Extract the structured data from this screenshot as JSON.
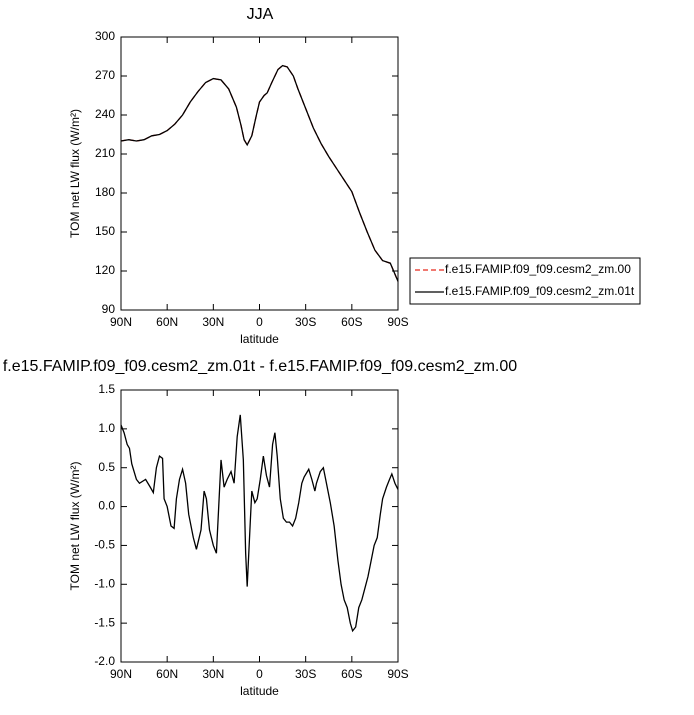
{
  "chart_data": [
    {
      "type": "line",
      "title": "JJA",
      "xlabel": "latitude",
      "ylabel": "TOM net LW flux (W/m²)",
      "xlim": [
        90,
        -90
      ],
      "ylim": [
        90,
        300
      ],
      "xticks": [
        {
          "value": 90,
          "label": "90N"
        },
        {
          "value": 60,
          "label": "60N"
        },
        {
          "value": 30,
          "label": "30N"
        },
        0,
        {
          "value": -30,
          "label": "30S"
        },
        {
          "value": -60,
          "label": "60S"
        },
        {
          "value": -90,
          "label": "90S"
        }
      ],
      "yticks": [
        90,
        120,
        150,
        180,
        210,
        240,
        270,
        300
      ],
      "legend": "right",
      "x": [
        90,
        85,
        80,
        75,
        70,
        65,
        60,
        55,
        50,
        45,
        40,
        35,
        30,
        25,
        20,
        15,
        12,
        10,
        8,
        5,
        2,
        0,
        -3,
        -5,
        -8,
        -12,
        -15,
        -18,
        -22,
        -25,
        -30,
        -35,
        -40,
        -45,
        -50,
        -55,
        -60,
        -65,
        -70,
        -75,
        -80,
        -85,
        -90
      ],
      "series": [
        {
          "name": "f.e15.FAMIP.f09_f09.cesm2_zm.00",
          "color": "#e8291c",
          "line_style": "dashed",
          "values": [
            220,
            221,
            220,
            221,
            224,
            225,
            228,
            233,
            240,
            250,
            258,
            265,
            268,
            267,
            260,
            246,
            232,
            221,
            217,
            224,
            240,
            250,
            255,
            257,
            265,
            275,
            278,
            277,
            270,
            260,
            245,
            230,
            218,
            208,
            199,
            190,
            181,
            165,
            150,
            136,
            128,
            126,
            112
          ]
        },
        {
          "name": "f.e15.FAMIP.f09_f09.cesm2_zm.01t",
          "color": "#000000",
          "line_style": "solid",
          "values": [
            220,
            221,
            220,
            221,
            224,
            225,
            228,
            233,
            240,
            250,
            258,
            265,
            268,
            267,
            260,
            246,
            232,
            221,
            217,
            224,
            240,
            250,
            255,
            257,
            265,
            275,
            278,
            277,
            270,
            260,
            245,
            230,
            218,
            208,
            199,
            190,
            181,
            165,
            150,
            136,
            128,
            126,
            112
          ]
        }
      ]
    },
    {
      "type": "line",
      "title": "f.e15.FAMIP.f09_f09.cesm2_zm.01t - f.e15.FAMIP.f09_f09.cesm2_zm.00",
      "xlabel": "latitude",
      "ylabel": "TOM net LW flux (W/m²)",
      "xlim": [
        90,
        -90
      ],
      "ylim": [
        -2,
        1.5
      ],
      "xticks": [
        {
          "value": 90,
          "label": "90N"
        },
        {
          "value": 60,
          "label": "60N"
        },
        {
          "value": 30,
          "label": "30N"
        },
        0,
        {
          "value": -30,
          "label": "30S"
        },
        {
          "value": -60,
          "label": "60S"
        },
        {
          "value": -90,
          "label": "90S"
        }
      ],
      "yticks": [
        1.5,
        {
          "value": 1,
          "label": "1.0"
        },
        0.5,
        {
          "value": 0,
          "label": "0.0"
        },
        -0.5,
        {
          "value": -1,
          "label": "-1.0"
        },
        -1.5,
        {
          "value": -2,
          "label": "-2.0"
        }
      ],
      "x": [
        90,
        88,
        86,
        84.5,
        83,
        80,
        78,
        74,
        71,
        69,
        67,
        65,
        63,
        62,
        60,
        57.5,
        55.5,
        54,
        52,
        50,
        48,
        46,
        43,
        41,
        38,
        36,
        34.5,
        32.5,
        30,
        28,
        27,
        25,
        23,
        21,
        18.5,
        16.5,
        14.5,
        12.5,
        10.5,
        9,
        8,
        6,
        5,
        3,
        1.5,
        -0.5,
        -2.5,
        -4.5,
        -6.5,
        -8.5,
        -10,
        -11.5,
        -13.5,
        -15.5,
        -17.5,
        -19.5,
        -21.5,
        -23.5,
        -25.5,
        -27.5,
        -29,
        -32,
        -34,
        -36,
        -37,
        -39.5,
        -41.5,
        -43,
        -46,
        -48.5,
        -51,
        -53,
        -55,
        -57,
        -59,
        -60.5,
        -62.5,
        -64.5,
        -66.5,
        -68.5,
        -70.5,
        -72.5,
        -74.5,
        -76.5,
        -78.5,
        -80,
        -82.5,
        -84.5,
        -86,
        -88,
        -90
      ],
      "series": [
        {
          "color": "#000000",
          "line_style": "solid",
          "values": [
            1.05,
            0.95,
            0.8,
            0.75,
            0.55,
            0.35,
            0.3,
            0.35,
            0.25,
            0.18,
            0.5,
            0.65,
            0.62,
            0.1,
            0.0,
            -0.25,
            -0.28,
            0.1,
            0.35,
            0.48,
            0.3,
            -0.1,
            -0.4,
            -0.55,
            -0.3,
            0.2,
            0.1,
            -0.3,
            -0.5,
            -0.6,
            -0.2,
            0.6,
            0.25,
            0.35,
            0.45,
            0.3,
            0.9,
            1.18,
            0.6,
            -0.6,
            -1.03,
            -0.2,
            0.2,
            0.05,
            0.1,
            0.35,
            0.65,
            0.4,
            0.25,
            0.8,
            0.95,
            0.65,
            0.1,
            -0.15,
            -0.2,
            -0.2,
            -0.25,
            -0.15,
            0.05,
            0.3,
            0.38,
            0.48,
            0.35,
            0.2,
            0.3,
            0.45,
            0.5,
            0.35,
            0.05,
            -0.25,
            -0.7,
            -1.0,
            -1.2,
            -1.3,
            -1.5,
            -1.6,
            -1.55,
            -1.3,
            -1.2,
            -1.05,
            -0.9,
            -0.7,
            -0.5,
            -0.4,
            -0.1,
            0.1,
            0.25,
            0.35,
            0.42,
            0.3,
            0.22
          ]
        }
      ]
    }
  ]
}
